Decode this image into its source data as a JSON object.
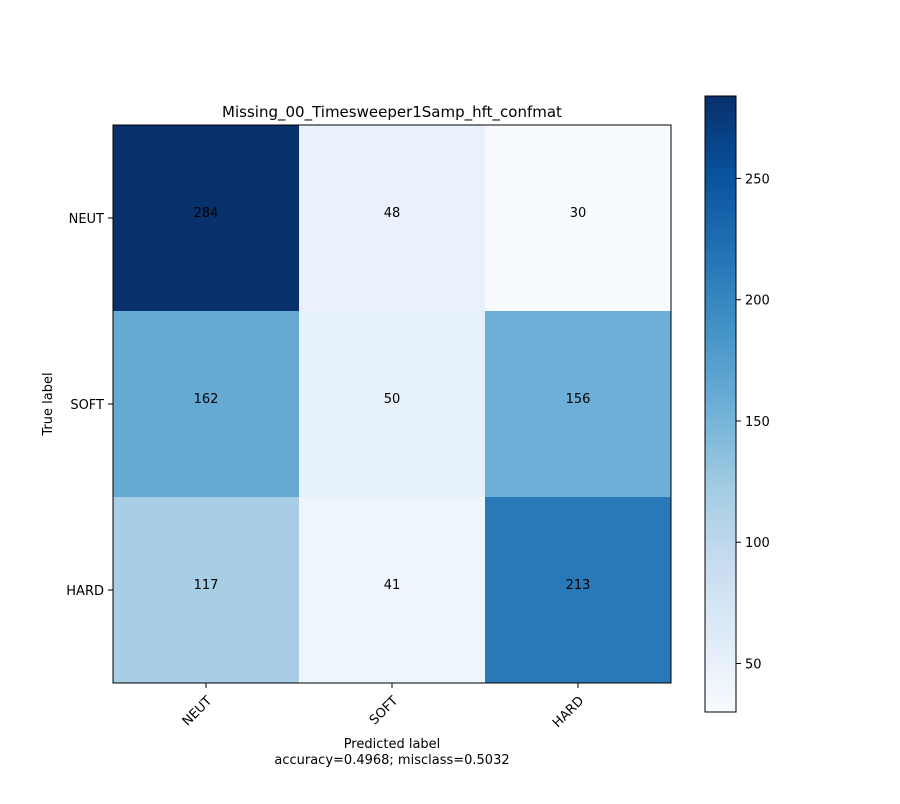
{
  "chart_data": {
    "type": "heatmap",
    "title": "Missing_00_Timesweeper1Samp_hft_confmat",
    "xlabel": "Predicted label",
    "xlabel_note": "accuracy=0.4968; misclass=0.5032",
    "ylabel": "True label",
    "x_categories": [
      "NEUT",
      "SOFT",
      "HARD"
    ],
    "y_categories": [
      "NEUT",
      "SOFT",
      "HARD"
    ],
    "values": [
      [
        284,
        48,
        30
      ],
      [
        162,
        50,
        156
      ],
      [
        117,
        41,
        213
      ]
    ],
    "colorbar": {
      "min": 30,
      "max": 284,
      "ticks": [
        "50",
        "100",
        "150",
        "200",
        "250"
      ],
      "colormap": "Blues"
    },
    "grid": false,
    "x_tick_rotation_deg": 45
  }
}
